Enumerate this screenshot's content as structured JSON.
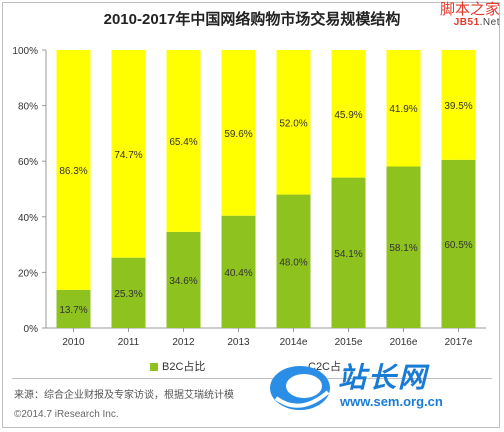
{
  "chart_data": {
    "type": "bar",
    "stacked": true,
    "title": "2010-2017年中国网络购物市场交易规模结构",
    "categories": [
      "2010",
      "2011",
      "2012",
      "2013",
      "2014e",
      "2015e",
      "2016e",
      "2017e"
    ],
    "series": [
      {
        "name": "B2C占比",
        "color": "#8dc21f",
        "values": [
          13.7,
          25.3,
          34.6,
          40.4,
          48.0,
          54.1,
          58.1,
          60.5
        ],
        "labels": [
          "13.7%",
          "25.3%",
          "34.6%",
          "40.4%",
          "48.0%",
          "54.1%",
          "58.1%",
          "60.5%"
        ]
      },
      {
        "name": "C2C占比",
        "color": "#ffff00",
        "values": [
          86.3,
          74.7,
          65.4,
          59.6,
          52.0,
          45.9,
          41.9,
          39.5
        ],
        "labels": [
          "86.3%",
          "74.7%",
          "65.4%",
          "59.6%",
          "52.0%",
          "45.9%",
          "41.9%",
          "39.5%"
        ]
      }
    ],
    "y_ticks": [
      "0%",
      "20%",
      "40%",
      "60%",
      "80%",
      "100%"
    ],
    "ylim": [
      0,
      100
    ],
    "grid": false,
    "legend_position": "bottom"
  },
  "legend": {
    "b2c": "B2C占比",
    "c2c": "C2C占"
  },
  "source": "来源：综合企业财报及专家访谈，根据艾瑞统计模",
  "copyright": "©2014.7 iResearch Inc.",
  "copyright_url": "www.iresearch.com.cn",
  "watermark_top": {
    "cn": "脚本之家",
    "sub_left": "JB51",
    "sub_right": ".Net"
  },
  "watermark_bottom": {
    "cn": "站长网",
    "url": "www.sem.org.cn"
  }
}
